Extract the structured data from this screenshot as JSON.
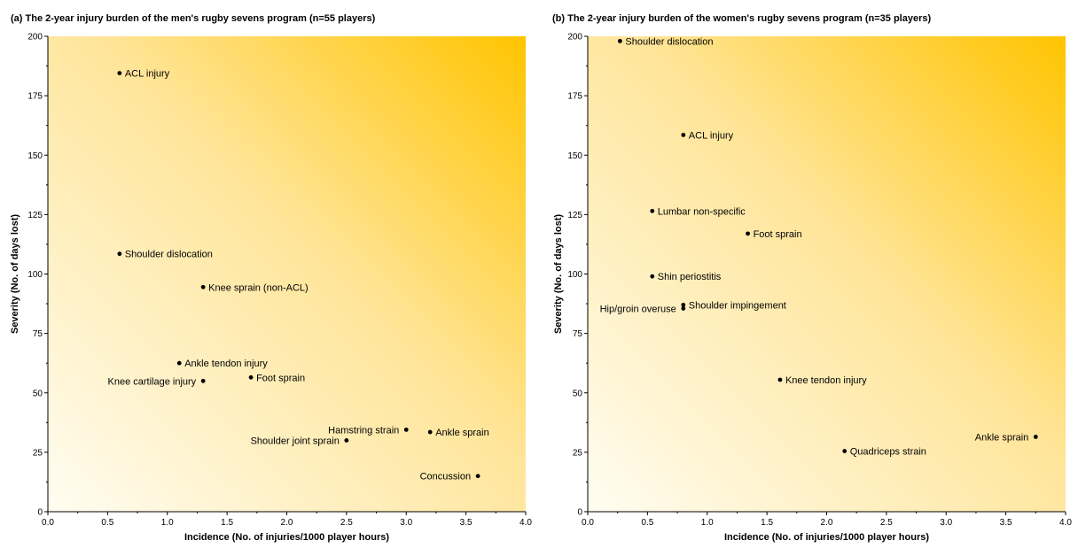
{
  "chart_data": [
    {
      "type": "scatter",
      "title": "(a) The 2-year injury burden of the men's rugby sevens program (n=55 players)",
      "xlabel": "Incidence (No. of injuries/1000 player hours)",
      "ylabel": "Severity (No. of days lost)",
      "xlim": [
        0,
        4
      ],
      "ylim": [
        0,
        200
      ],
      "xticks": [
        "0.0",
        "0.5",
        "1.0",
        "1.5",
        "2.0",
        "2.5",
        "3.0",
        "3.5",
        "4.0"
      ],
      "yticks": [
        "0",
        "25",
        "50",
        "75",
        "100",
        "125",
        "150",
        "175",
        "200"
      ],
      "background": "yellow gradient (white at bottom-left to gold at top-right)",
      "gradient_colors": [
        "#fffdf2",
        "#ffc400"
      ],
      "points": [
        {
          "label": "ACL injury",
          "x": 0.6,
          "y": 184.5,
          "label_side": "right"
        },
        {
          "label": "Shoulder dislocation",
          "x": 0.6,
          "y": 108.5,
          "label_side": "right"
        },
        {
          "label": "Knee sprain (non-ACL)",
          "x": 1.3,
          "y": 94.5,
          "label_side": "right"
        },
        {
          "label": "Ankle tendon injury",
          "x": 1.1,
          "y": 62.5,
          "label_side": "right"
        },
        {
          "label": "Foot sprain",
          "x": 1.7,
          "y": 56.5,
          "label_side": "right"
        },
        {
          "label": "Knee cartilage injury",
          "x": 1.3,
          "y": 55,
          "label_side": "left"
        },
        {
          "label": "Hamstring strain",
          "x": 3.0,
          "y": 34.5,
          "label_side": "left"
        },
        {
          "label": "Ankle sprain",
          "x": 3.2,
          "y": 33.5,
          "label_side": "right"
        },
        {
          "label": "Shoulder joint sprain",
          "x": 2.5,
          "y": 30,
          "label_side": "left"
        },
        {
          "label": "Concussion",
          "x": 3.6,
          "y": 15,
          "label_side": "left"
        }
      ]
    },
    {
      "type": "scatter",
      "title": "(b) The 2-year injury burden of the women's rugby sevens program (n=35 players)",
      "xlabel": "Incidence (No. of injuries/1000 player hours)",
      "ylabel": "Severity (No. of days lost)",
      "xlim": [
        0,
        4
      ],
      "ylim": [
        0,
        200
      ],
      "xticks": [
        "0.0",
        "0.5",
        "1.0",
        "1.5",
        "2.0",
        "2.5",
        "3.0",
        "3.5",
        "4.0"
      ],
      "yticks": [
        "0",
        "25",
        "50",
        "75",
        "100",
        "125",
        "150",
        "175",
        "200"
      ],
      "background": "yellow gradient (white at bottom-left to gold at top-right)",
      "gradient_colors": [
        "#fffdf2",
        "#ffc400"
      ],
      "points": [
        {
          "label": "Shoulder dislocation",
          "x": 0.27,
          "y": 198,
          "label_side": "right"
        },
        {
          "label": "ACL injury",
          "x": 0.8,
          "y": 158.5,
          "label_side": "right"
        },
        {
          "label": "Lumbar non-specific",
          "x": 0.54,
          "y": 126.5,
          "label_side": "right"
        },
        {
          "label": "Foot sprain",
          "x": 1.34,
          "y": 117,
          "label_side": "right"
        },
        {
          "label": "Shin periostitis",
          "x": 0.54,
          "y": 99,
          "label_side": "right"
        },
        {
          "label": "Shoulder impingement",
          "x": 0.8,
          "y": 87,
          "label_side": "right"
        },
        {
          "label": "Hip/groin overuse",
          "x": 0.8,
          "y": 85.5,
          "label_side": "left"
        },
        {
          "label": "Knee tendon injury",
          "x": 1.61,
          "y": 55.5,
          "label_side": "right"
        },
        {
          "label": "Ankle sprain",
          "x": 3.75,
          "y": 31.5,
          "label_side": "left"
        },
        {
          "label": "Quadriceps strain",
          "x": 2.15,
          "y": 25.5,
          "label_side": "right"
        }
      ]
    }
  ]
}
